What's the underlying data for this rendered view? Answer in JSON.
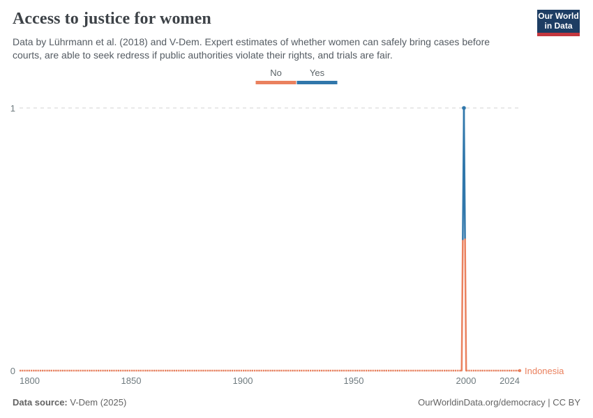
{
  "header": {
    "title": "Access to justice for women",
    "subtitle": "Data by Lührmann et al. (2018) and V-Dem. Expert estimates of whether women can safely bring cases before courts, are able to seek redress if public authorities violate their rights, and trials are fair.",
    "logo": {
      "line1": "Our World",
      "line2": "in Data"
    }
  },
  "legend": {
    "items": [
      {
        "label": "No",
        "color": "#ea815e"
      },
      {
        "label": "Yes",
        "color": "#3077ab"
      }
    ]
  },
  "chart_data": {
    "type": "line",
    "title": "Access to justice for women",
    "entity": "Indonesia",
    "xlim": [
      1800,
      2024
    ],
    "ylim": [
      0,
      1
    ],
    "x_ticks": [
      1800,
      1850,
      1900,
      1950,
      2000,
      2024
    ],
    "y_ticks": [
      0,
      1
    ],
    "categories": [
      "No",
      "Yes"
    ],
    "colors": {
      "No": "#ea815e",
      "Yes": "#3077ab"
    },
    "points": [
      [
        1800,
        0
      ],
      [
        1998,
        0
      ],
      [
        1999,
        1
      ],
      [
        2000,
        0
      ],
      [
        2024,
        0
      ]
    ],
    "value_note": "Binary scale: 0 = No, 1 = Yes. Indonesia is 'No' (0) every year 1800-2024 except 1999, which is 'Yes' (1).",
    "legend_position": "top-center",
    "grid": "horizontal dashed gridlines at y ticks"
  },
  "footer": {
    "source_label": "Data source:",
    "source_value": "V-Dem (2025)",
    "right_text": "OurWorldinData.org/democracy | CC BY"
  }
}
